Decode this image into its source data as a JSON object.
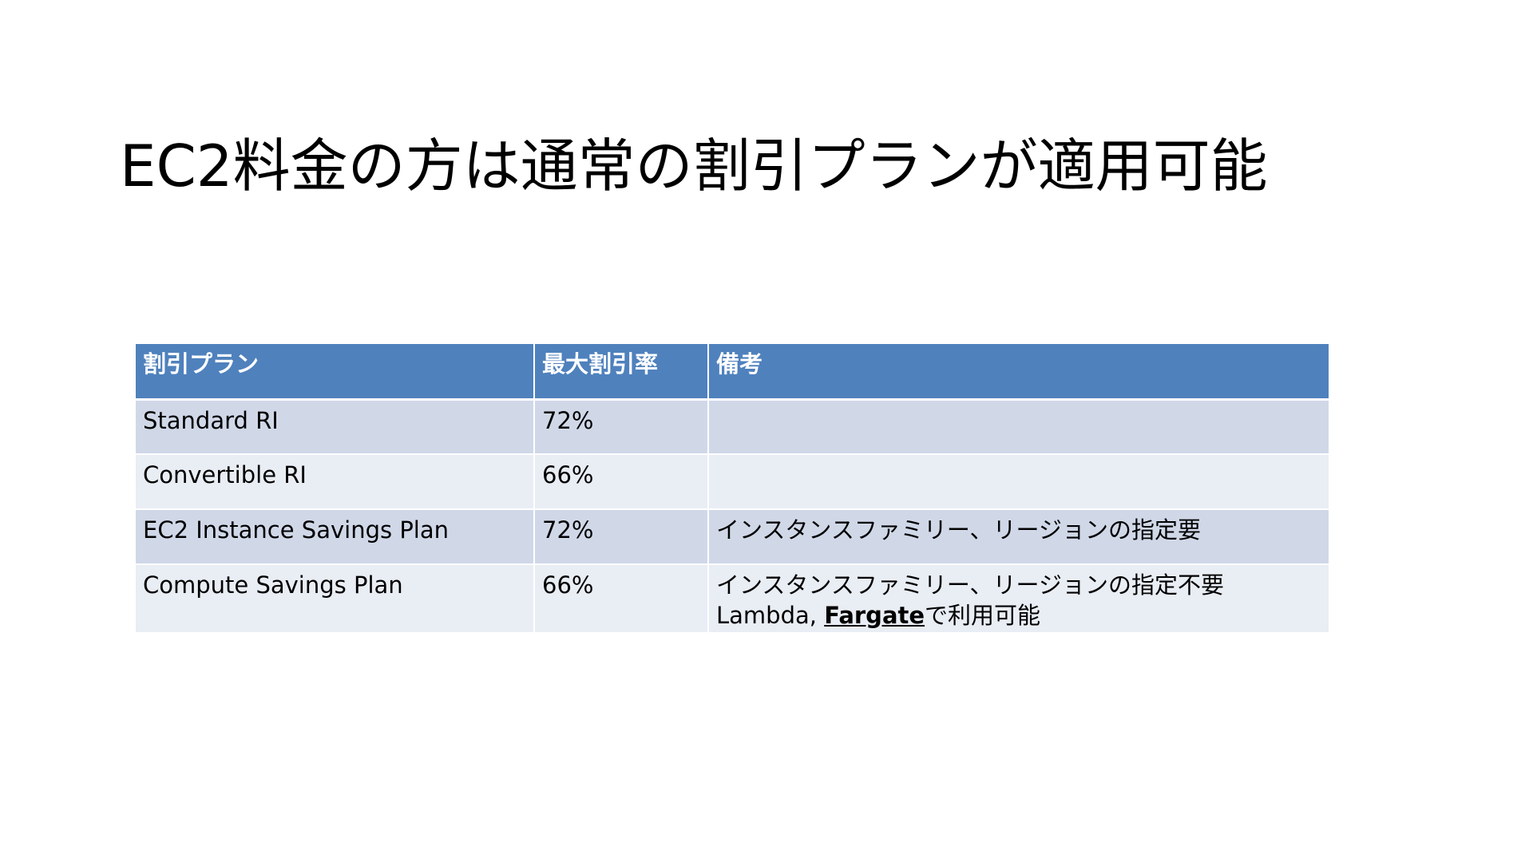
{
  "slide": {
    "title": "EC2料金の方は通常の割引プランが適用可能"
  },
  "table": {
    "headers": {
      "plan": "割引プラン",
      "rate": "最大割引率",
      "note": "備考"
    },
    "rows": [
      {
        "plan": "Standard RI",
        "rate": "72%",
        "note": ""
      },
      {
        "plan": "Convertible RI",
        "rate": "66%",
        "note": ""
      },
      {
        "plan": "EC2 Instance Savings Plan",
        "rate": "72%",
        "note": "インスタンスファミリー、リージョンの指定要"
      },
      {
        "plan": "Compute Savings Plan",
        "rate": "66%",
        "note": "インスタンスファミリー、リージョンの指定不要",
        "note_line2_prefix": "Lambda, ",
        "note_line2_link": "Fargate",
        "note_line2_suffix": "で利用可能"
      }
    ]
  },
  "colors": {
    "header_bg": "#4f81bd",
    "row_odd_bg": "#d0d8e8",
    "row_even_bg": "#e9edf4"
  }
}
